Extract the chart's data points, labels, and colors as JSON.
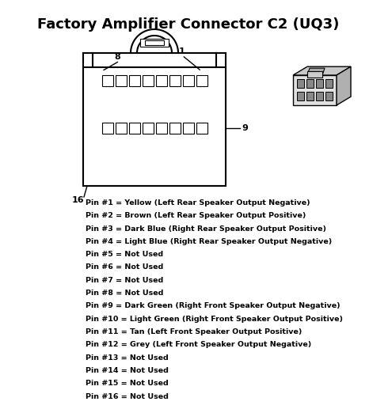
{
  "title": "Factory Amplifier Connector C2 (UQ3)",
  "title_fontsize": 13,
  "background_color": "#ffffff",
  "text_color": "#000000",
  "pin_labels": [
    "Pin #1 = Yellow (Left Rear Speaker Output Negative)",
    "Pin #2 = Brown (Left Rear Speaker Output Positive)",
    "Pin #3 = Dark Blue (Right Rear Speaker Output Positive)",
    "Pin #4 = Light Blue (Right Rear Speaker Output Negative)",
    "Pin #5 = Not Used",
    "Pin #6 = Not Used",
    "Pin #7 = Not Used",
    "Pin #8 = Not Used",
    "Pin #9 = Dark Green (Right Front Speaker Output Negative)",
    "Pin #10 = Light Green (Right Front Speaker Output Positive)",
    "Pin #11 = Tan (Left Front Speaker Output Positive)",
    "Pin #12 = Grey (Left Front Speaker Output Negative)",
    "Pin #13 = Not Used",
    "Pin #14 = Not Used",
    "Pin #15 = Not Used",
    "Pin #16 = Not Used"
  ],
  "label_fontsize": 6.8,
  "connector_color": "#000000",
  "connector_fill": "#ffffff",
  "fig_width": 4.95,
  "fig_height": 5.17,
  "dpi": 100
}
